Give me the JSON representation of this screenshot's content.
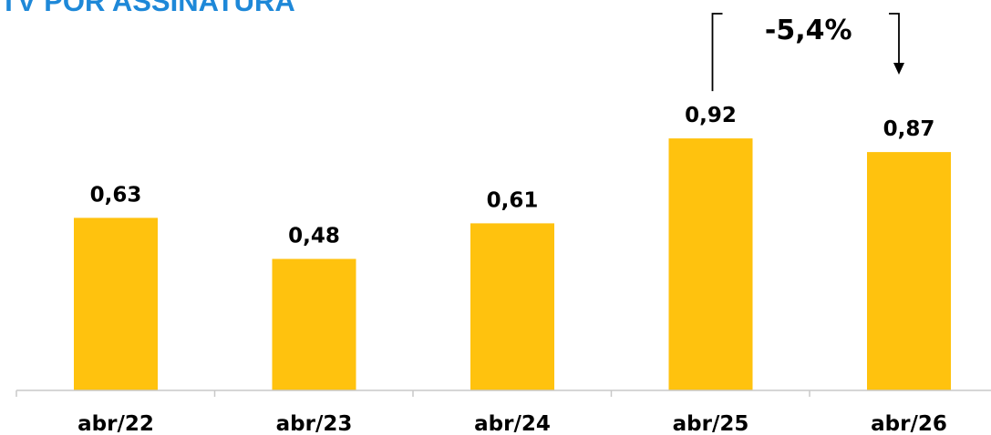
{
  "chart_data": {
    "type": "bar",
    "title": "TV POR ASSINATURA",
    "categories": [
      "abr/22",
      "abr/23",
      "abr/24",
      "abr/25",
      "abr/26"
    ],
    "values": [
      0.63,
      0.48,
      0.61,
      0.92,
      0.87
    ],
    "value_labels": [
      "0,63",
      "0,48",
      "0,61",
      "0,92",
      "0,87"
    ],
    "bar_color": "#FFC20E",
    "title_color": "#1E88D8",
    "ylim": [
      0,
      1.05
    ],
    "grid": false,
    "legend": "none",
    "annotation": {
      "text": "-5,4%",
      "from_category": "abr/25",
      "to_category": "abr/26"
    }
  }
}
